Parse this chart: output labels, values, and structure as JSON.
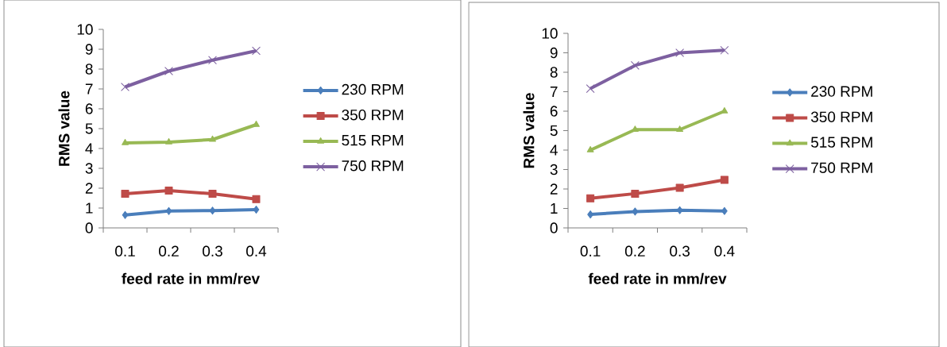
{
  "chart_data": [
    {
      "type": "line",
      "xlabel": "feed rate in mm/rev",
      "ylabel": "RMS value",
      "categories": [
        "0.1",
        "0.2",
        "0.3",
        "0.4"
      ],
      "ylim": [
        0,
        10
      ],
      "yticks": [
        0,
        1,
        2,
        3,
        4,
        5,
        6,
        7,
        8,
        9,
        10
      ],
      "legend": "right",
      "grid": false,
      "series": [
        {
          "name": "230 RPM",
          "color": "#4a7ebb",
          "marker": "diamond",
          "values": [
            0.65,
            0.85,
            0.87,
            0.92
          ]
        },
        {
          "name": "350 RPM",
          "color": "#be4b48",
          "marker": "square",
          "values": [
            1.72,
            1.88,
            1.72,
            1.45
          ]
        },
        {
          "name": "515 RPM",
          "color": "#98b954",
          "marker": "triangle",
          "values": [
            4.28,
            4.32,
            4.45,
            5.2
          ]
        },
        {
          "name": "750 RPM",
          "color": "#7d60a0",
          "marker": "cross",
          "values": [
            7.1,
            7.9,
            8.45,
            8.92
          ]
        }
      ]
    },
    {
      "type": "line",
      "xlabel": "feed rate in mm/rev",
      "ylabel": "RMS value",
      "categories": [
        "0.1",
        "0.2",
        "0.3",
        "0.4"
      ],
      "ylim": [
        0,
        10
      ],
      "yticks": [
        0,
        1,
        2,
        3,
        4,
        5,
        6,
        7,
        8,
        9,
        10
      ],
      "legend": "right",
      "grid": false,
      "series": [
        {
          "name": "230 RPM",
          "color": "#4a7ebb",
          "marker": "diamond",
          "values": [
            0.69,
            0.84,
            0.91,
            0.87
          ]
        },
        {
          "name": "350 RPM",
          "color": "#be4b48",
          "marker": "square",
          "values": [
            1.52,
            1.76,
            2.06,
            2.47
          ]
        },
        {
          "name": "515 RPM",
          "color": "#98b954",
          "marker": "triangle",
          "values": [
            4.0,
            5.05,
            5.05,
            6.0
          ]
        },
        {
          "name": "750 RPM",
          "color": "#7d60a0",
          "marker": "cross",
          "values": [
            7.16,
            8.35,
            9.0,
            9.13
          ]
        }
      ]
    }
  ]
}
